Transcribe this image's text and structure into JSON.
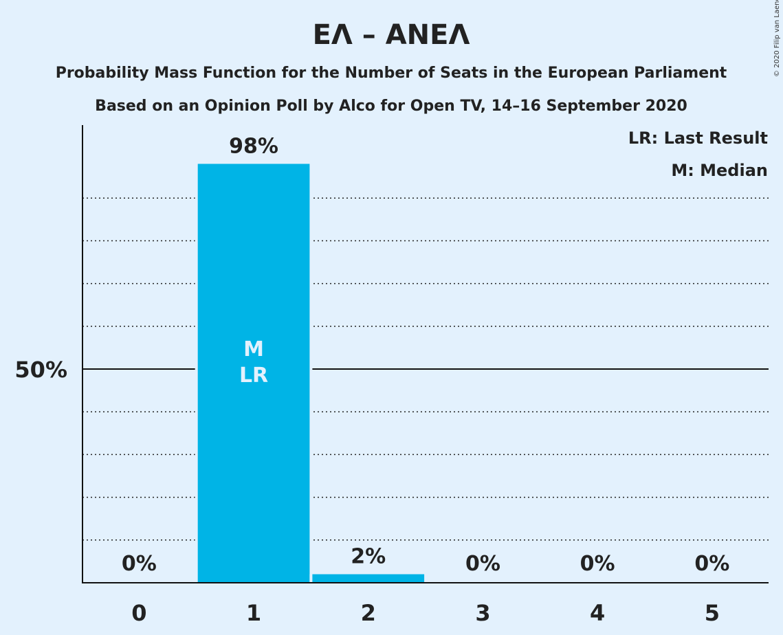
{
  "title": "ΕΛ – ΑΝΕΛ",
  "subtitle_1": "Probability Mass Function for the Number of Seats in the European Parliament",
  "subtitle_2": "Based on an Opinion Poll by Alco for Open TV, 14–16 September 2020",
  "legend": {
    "last_result": "LR: Last Result",
    "median": "M: Median"
  },
  "copyright": "© 2020 Filip van Laenen",
  "colors": {
    "background": "#e3f1fd",
    "bar": "#00b4e6",
    "text": "#222222"
  },
  "chart_data": {
    "type": "bar",
    "categories": [
      "0",
      "1",
      "2",
      "3",
      "4",
      "5"
    ],
    "values": [
      0,
      98,
      2,
      0,
      0,
      0
    ],
    "value_labels": [
      "0%",
      "98%",
      "2%",
      "0%",
      "0%",
      "0%"
    ],
    "ylim": [
      0,
      100
    ],
    "y_tick_labels": [
      {
        "value": 50,
        "label": "50%"
      }
    ],
    "gridlines": [
      10,
      20,
      30,
      40,
      60,
      70,
      80,
      90
    ],
    "solid_line": 50,
    "bar_annotations": [
      {
        "category": "1",
        "lines": [
          "M",
          "LR"
        ]
      }
    ],
    "xlabel": "",
    "ylabel": ""
  }
}
